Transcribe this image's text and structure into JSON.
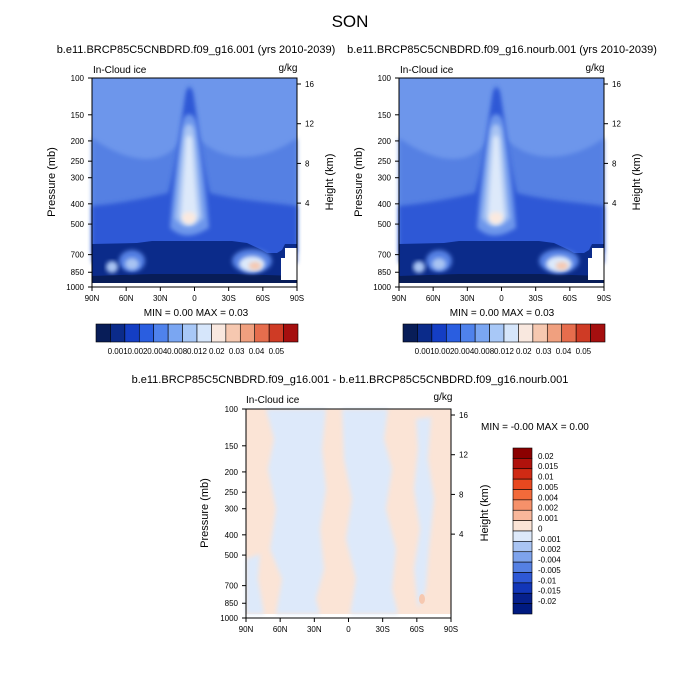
{
  "figure": {
    "title": "SON",
    "variable_label": "In-Cloud ice",
    "units": "g/kg",
    "ylabel_left": "Pressure (mb)",
    "ylabel_right": "Height (km)"
  },
  "chart_data": [
    {
      "type": "heatmap",
      "id": "case",
      "title": "b.e11.BRCP85C5CNBDRD.f09_g16.001 (yrs 2010-2039)",
      "x_ticks": [
        "90N",
        "60N",
        "30N",
        "0",
        "30S",
        "60S",
        "90S"
      ],
      "y_ticks": [
        "100",
        "150",
        "200",
        "250",
        "300",
        "400",
        "500",
        "700",
        "850",
        "1000"
      ],
      "y_right_ticks": [
        "16",
        "12",
        "8",
        "4"
      ],
      "stats": "MIN =   0.00  MAX =   0.03",
      "colorbar_labels": [
        "0.001",
        "0.002",
        "0.004",
        "0.008",
        "0.012",
        "0.02",
        "0.03",
        "0.04",
        "0.05"
      ],
      "colorbar_colors": [
        "#081d58",
        "#0b2b8a",
        "#143ec4",
        "#2a5ee0",
        "#4f82ec",
        "#7aa6f2",
        "#a8c8f7",
        "#d6e6fb",
        "#f9e8df",
        "#f6c8b0",
        "#f0a07f",
        "#e66d4d",
        "#cf3b25",
        "#a50f0f"
      ]
    },
    {
      "type": "heatmap",
      "id": "control",
      "title": "b.e11.BRCP85C5CNBDRD.f09_g16.nourb.001 (yrs 2010-2039)",
      "x_ticks": [
        "90N",
        "60N",
        "30N",
        "0",
        "30S",
        "60S",
        "90S"
      ],
      "y_ticks": [
        "100",
        "150",
        "200",
        "250",
        "300",
        "400",
        "500",
        "700",
        "850",
        "1000"
      ],
      "y_right_ticks": [
        "16",
        "12",
        "8",
        "4"
      ],
      "stats": "MIN =   0.00  MAX =   0.03",
      "colorbar_labels": [
        "0.001",
        "0.002",
        "0.004",
        "0.008",
        "0.012",
        "0.02",
        "0.03",
        "0.04",
        "0.05"
      ],
      "colorbar_colors": [
        "#081d58",
        "#0b2b8a",
        "#143ec4",
        "#2a5ee0",
        "#4f82ec",
        "#7aa6f2",
        "#a8c8f7",
        "#d6e6fb",
        "#f9e8df",
        "#f6c8b0",
        "#f0a07f",
        "#e66d4d",
        "#cf3b25",
        "#a50f0f"
      ]
    },
    {
      "type": "heatmap",
      "id": "difference",
      "title": "b.e11.BRCP85C5CNBDRD.f09_g16.001 - b.e11.BRCP85C5CNBDRD.f09_g16.nourb.001",
      "x_ticks": [
        "90N",
        "60N",
        "30N",
        "0",
        "30S",
        "60S",
        "90S"
      ],
      "y_ticks": [
        "100",
        "150",
        "200",
        "250",
        "300",
        "400",
        "500",
        "700",
        "850",
        "1000"
      ],
      "y_right_ticks": [
        "16",
        "12",
        "8",
        "4"
      ],
      "stats": "MIN = -0.00  MAX =   0.00",
      "colorbar_labels": [
        "0.02",
        "0.015",
        "0.01",
        "0.005",
        "0.004",
        "0.002",
        "0.001",
        "0",
        "-0.001",
        "-0.002",
        "-0.004",
        "-0.005",
        "-0.01",
        "-0.015",
        "-0.02"
      ],
      "colorbar_colors": [
        "#8b0000",
        "#b0120c",
        "#d02a14",
        "#e8481f",
        "#f26a3a",
        "#f6916a",
        "#f8b79b",
        "#fbe4d6",
        "#dde9fa",
        "#a9c4f3",
        "#7ea3ec",
        "#5580e3",
        "#2e58d6",
        "#1236b8",
        "#06208c",
        "#001a80"
      ]
    }
  ]
}
